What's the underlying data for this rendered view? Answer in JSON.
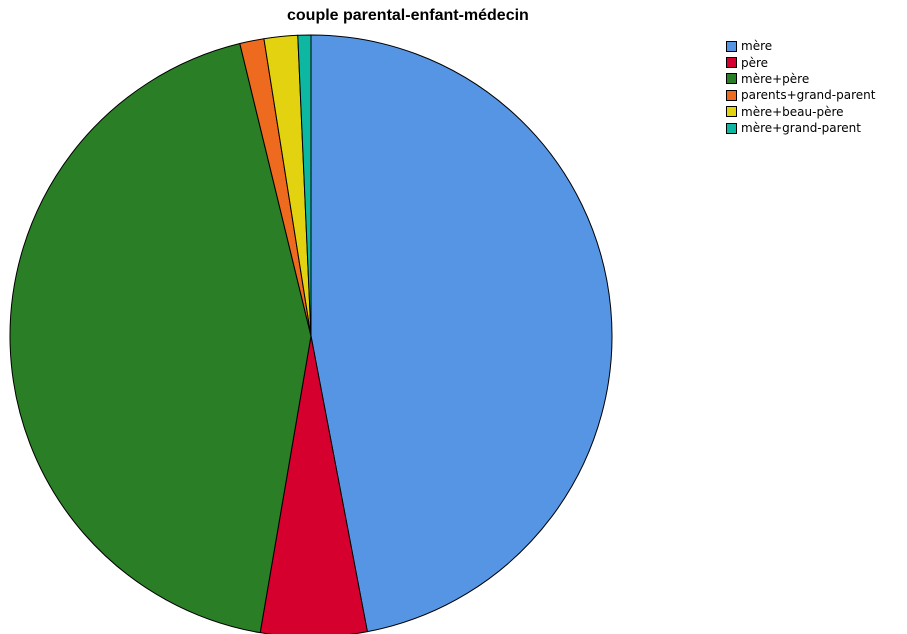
{
  "chart_data": {
    "type": "pie",
    "title": "couple parental-enfant-médecin",
    "start": "12 o'clock",
    "direction": "clockwise",
    "slices": [
      {
        "label": "mère",
        "value": 47.0,
        "color": "#5595E3"
      },
      {
        "label": "père",
        "value": 5.7,
        "color": "#D6002E"
      },
      {
        "label": "mère+père",
        "value": 43.5,
        "color": "#2A7E25"
      },
      {
        "label": "parents+grand-parent",
        "value": 1.3,
        "color": "#EE6A1E"
      },
      {
        "label": "mère+beau-père",
        "value": 1.8,
        "color": "#E2D20F"
      },
      {
        "label": "mère+grand-parent",
        "value": 0.7,
        "color": "#0EB7A1"
      }
    ],
    "legend": {
      "position": "top-right"
    }
  }
}
